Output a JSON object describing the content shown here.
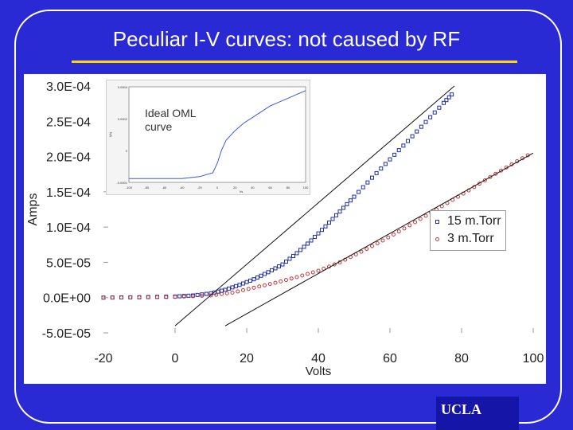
{
  "slide": {
    "title": "Peculiar I-V curves: not caused by RF",
    "logo_text": "UCLA",
    "inset_label": "Ideal OML curve",
    "colors": {
      "background": "#2a2ad4",
      "title_rule": "#ffd700",
      "series_15": "#1f2fa8",
      "series_3": "#c23a3a"
    }
  },
  "chart_data": {
    "type": "scatter",
    "xlabel": "Volts",
    "ylabel": "Amps",
    "xlim": [
      -20,
      100
    ],
    "ylim": [
      -5e-05,
      0.0003
    ],
    "x_ticks": [
      "-20",
      "0",
      "20",
      "40",
      "60",
      "80",
      "100"
    ],
    "y_ticks": [
      "3.0E-04",
      "2.5E-04",
      "2.0E-04",
      "1.5E-04",
      "1.0E-04",
      "5.0E-05",
      "0.0E+00",
      "-5.0E-05"
    ],
    "legend_position": "right",
    "series": [
      {
        "name": "15 m.Torr",
        "marker": "square",
        "color": "#1f2fa8",
        "x": [
          -20,
          -10,
          0,
          5,
          10,
          14,
          18,
          22,
          26,
          30,
          34,
          38,
          42,
          46,
          50,
          55,
          60,
          65,
          70,
          75,
          78
        ],
        "y": [
          0.0,
          5e-07,
          1.5e-06,
          3e-06,
          6e-06,
          1.1e-05,
          1.8e-05,
          2.6e-05,
          3.6e-05,
          4.7e-05,
          6.3e-05,
          8.1e-05,
          0.000101,
          0.000122,
          0.000143,
          0.00017,
          0.000196,
          0.000222,
          0.000249,
          0.000276,
          0.000292
        ]
      },
      {
        "name": "3 m.Torr",
        "marker": "circle",
        "color": "#c23a3a",
        "x": [
          -20,
          -10,
          0,
          10,
          16,
          22,
          28,
          34,
          40,
          46,
          52,
          58,
          64,
          70,
          76,
          82,
          88,
          94,
          100
        ],
        "y": [
          0.0,
          3e-07,
          1e-06,
          3e-06,
          7e-06,
          1.4e-05,
          2.1e-05,
          2.9e-05,
          3.8e-05,
          5e-05,
          6.5e-05,
          8.1e-05,
          9.8e-05,
          0.000116,
          0.000134,
          0.000152,
          0.000171,
          0.000189,
          0.000206
        ]
      },
      {
        "name": "",
        "marker": "line",
        "color": "#111111",
        "x": [
          0,
          78
        ],
        "y": [
          -4e-05,
          0.0003
        ]
      },
      {
        "name": "",
        "marker": "line",
        "color": "#111111",
        "x": [
          14,
          100
        ],
        "y": [
          -4e-05,
          0.000205
        ]
      }
    ]
  },
  "inset_chart": {
    "type": "line",
    "xlabel": "Vs",
    "ylabel": "I(A)",
    "xlim": [
      -100,
      100
    ],
    "ylim": [
      -0.0001,
      0.0004
    ],
    "x_ticks": [
      "-100",
      "-80",
      "-60",
      "-40",
      "-20",
      "0",
      "20",
      "40",
      "60",
      "80",
      "100"
    ],
    "y_ticks": [
      "0.0004",
      "0.0002",
      "0",
      "-0.0001"
    ],
    "series": [
      {
        "name": "",
        "color": "#3a5bd9",
        "x": [
          -100,
          -80,
          -60,
          -40,
          -20,
          -5,
          0,
          5,
          10,
          20,
          30,
          40,
          50,
          60,
          70,
          80,
          90,
          100
        ],
        "y": [
          -8e-05,
          -8e-05,
          -8e-05,
          -8e-05,
          -7e-05,
          -5e-05,
          0.0,
          7e-05,
          0.00012,
          0.00017,
          0.00021,
          0.00024,
          0.00027,
          0.0003,
          0.00032,
          0.00034,
          0.00036,
          0.00038
        ]
      }
    ]
  }
}
